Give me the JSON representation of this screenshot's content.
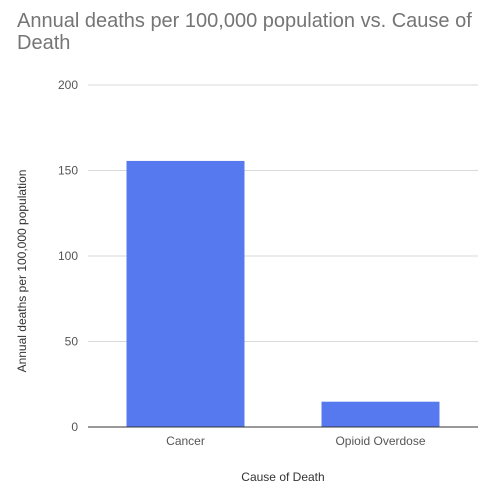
{
  "chart_data": {
    "type": "bar",
    "title": "Annual deaths per 100,000 population vs. Cause of Death",
    "xlabel": "Cause of Death",
    "ylabel": "Annual deaths per 100,000 population",
    "categories": [
      "Cancer",
      "Opioid Overdose"
    ],
    "series": [
      {
        "values": [
          155.6,
          14.8
        ],
        "color": "#5679f0"
      }
    ],
    "ylim": [
      0,
      200
    ],
    "yticks": [
      0,
      50,
      100,
      150,
      200
    ],
    "grid": true,
    "legend": "none"
  }
}
